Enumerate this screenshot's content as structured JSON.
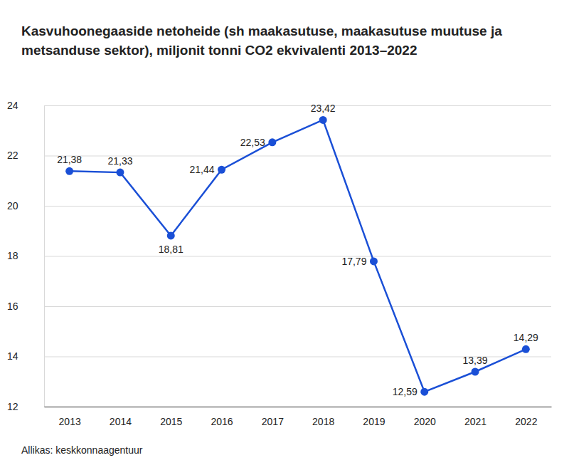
{
  "chart_data": {
    "type": "line",
    "title": "Kasvuhoonegaaside netoheide (sh maakasutuse, maakasutuse muutuse ja metsanduse sektor), miljonit tonni CO2 ekvivalenti 2013–2022",
    "source": "Allikas: keskkonnaagentuur",
    "categories": [
      "2013",
      "2014",
      "2015",
      "2016",
      "2017",
      "2018",
      "2019",
      "2020",
      "2021",
      "2022"
    ],
    "values": [
      21.38,
      21.33,
      18.81,
      21.44,
      22.53,
      23.42,
      17.79,
      12.59,
      13.39,
      14.29
    ],
    "value_labels": [
      "21,38",
      "21,33",
      "18,81",
      "21,44",
      "22,53",
      "23,42",
      "17,79",
      "12,59",
      "13,39",
      "14,29"
    ],
    "color": "#1a4fd6",
    "marker": "circle",
    "ylim": [
      12,
      24
    ],
    "yticks": [
      12,
      14,
      16,
      18,
      20,
      22,
      24
    ],
    "grid": true,
    "data_labels": true
  }
}
